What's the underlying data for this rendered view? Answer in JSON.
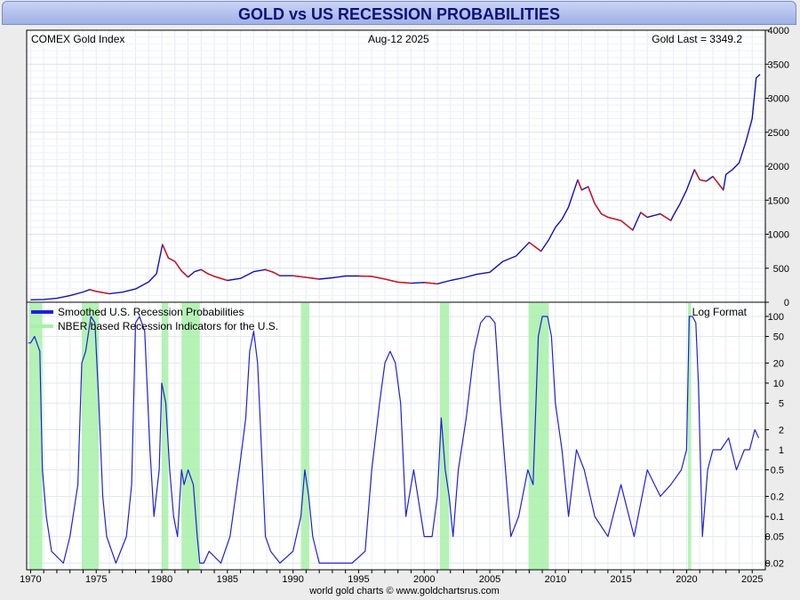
{
  "header": {
    "title": "GOLD vs US RECESSION PROBABILITIES"
  },
  "top_panel": {
    "label_left": "COMEX Gold Index",
    "label_date": "Aug-12  2025",
    "label_last": "Gold Last = 3349.2"
  },
  "bottom_panel": {
    "legend": [
      {
        "label": "Smoothed U.S. Recession Probabilities",
        "color": "#2020e0"
      },
      {
        "label": "NBER based Recession Indicators for the U.S.",
        "color": "#a8f0a8"
      }
    ],
    "format_label": "Log Format"
  },
  "footer": {
    "credit": "world gold charts © www.goldchartsrus.com"
  },
  "chart_data": [
    {
      "type": "line",
      "title": "COMEX Gold Index",
      "ylim": [
        0,
        4000
      ],
      "y_ticks": [
        0,
        500,
        1000,
        1500,
        2000,
        2500,
        3000,
        3500,
        4000
      ],
      "x_ticks": [
        1970,
        1975,
        1980,
        1985,
        1990,
        1995,
        2000,
        2005,
        2010,
        2015,
        2020,
        2025
      ],
      "xlim": [
        1969.7,
        2026.0
      ],
      "colors": {
        "up": "#1010c0",
        "down": "#e01010"
      },
      "series": [
        {
          "x": [
            1970,
            1971,
            1972,
            1973,
            1974,
            1974.5,
            1975,
            1976,
            1977,
            1978,
            1979,
            1979.6,
            1980.05,
            1980.5,
            1981,
            1981.5,
            1982,
            1982.5,
            1983,
            1983.5,
            1984,
            1985,
            1986,
            1987,
            1987.9,
            1988.5,
            1989,
            1990,
            1991,
            1992,
            1993,
            1994,
            1995,
            1996,
            1997,
            1998,
            1999,
            2000,
            2001,
            2002,
            2003,
            2004,
            2005,
            2006,
            2007,
            2008,
            2008.9,
            2009.5,
            2010,
            2010.5,
            2011,
            2011.7,
            2012,
            2012.5,
            2013,
            2013.5,
            2014,
            2015,
            2015.9,
            2016.5,
            2017,
            2018,
            2018.8,
            2019,
            2019.5,
            2020,
            2020.6,
            2021,
            2021.5,
            2022,
            2022.8,
            2023,
            2023.5,
            2024,
            2024.5,
            2025,
            2025.3,
            2025.6
          ],
          "values": [
            35,
            40,
            58,
            97,
            150,
            185,
            160,
            125,
            148,
            195,
            300,
            420,
            850,
            650,
            600,
            460,
            370,
            450,
            480,
            420,
            380,
            320,
            350,
            450,
            480,
            440,
            390,
            390,
            365,
            340,
            360,
            385,
            385,
            380,
            340,
            295,
            280,
            290,
            270,
            320,
            360,
            410,
            440,
            600,
            680,
            880,
            750,
            920,
            1100,
            1220,
            1400,
            1800,
            1650,
            1700,
            1450,
            1300,
            1250,
            1200,
            1060,
            1320,
            1250,
            1300,
            1200,
            1280,
            1450,
            1650,
            1950,
            1800,
            1780,
            1850,
            1650,
            1880,
            1950,
            2050,
            2350,
            2700,
            3300,
            3350
          ]
        }
      ]
    },
    {
      "type": "line",
      "title": "Smoothed U.S. Recession Probabilities",
      "scale": "log",
      "ylim": [
        0.018,
        140
      ],
      "y_ticks": [
        0.02,
        0.05,
        0.1,
        0.2,
        0.5,
        1,
        2,
        5,
        10,
        20,
        50,
        100
      ],
      "x_ticks": [
        1970,
        1975,
        1980,
        1985,
        1990,
        1995,
        2000,
        2005,
        2010,
        2015,
        2020,
        2025
      ],
      "xlim": [
        1969.7,
        2026.0
      ],
      "recessions": [
        [
          1969.9,
          1970.9
        ],
        [
          1973.9,
          1975.2
        ],
        [
          1980.0,
          1980.5
        ],
        [
          1981.5,
          1982.9
        ],
        [
          1990.6,
          1991.25
        ],
        [
          2001.2,
          2001.9
        ],
        [
          2007.95,
          2009.5
        ],
        [
          2020.1,
          2020.35
        ]
      ],
      "series": [
        {
          "name": "Smoothed U.S. Recession Probabilities",
          "x": [
            1969.8,
            1970.0,
            1970.3,
            1970.7,
            1970.9,
            1971.2,
            1971.6,
            1972.5,
            1973.0,
            1973.6,
            1973.9,
            1974.2,
            1974.6,
            1974.9,
            1975.2,
            1975.5,
            1975.8,
            1976.5,
            1977.3,
            1977.7,
            1978.0,
            1978.3,
            1978.7,
            1979.1,
            1979.4,
            1979.8,
            1980.0,
            1980.3,
            1980.6,
            1980.9,
            1981.2,
            1981.5,
            1981.7,
            1982.0,
            1982.4,
            1982.7,
            1982.9,
            1983.2,
            1983.6,
            1984.5,
            1985.2,
            1985.9,
            1986.4,
            1986.7,
            1987.0,
            1987.3,
            1987.6,
            1987.9,
            1988.3,
            1989.0,
            1990.0,
            1990.6,
            1990.9,
            1991.2,
            1991.5,
            1992.0,
            1993.0,
            1994.5,
            1995.5,
            1996.0,
            1996.6,
            1997.0,
            1997.4,
            1997.8,
            1998.2,
            1998.6,
            1999.2,
            2000.0,
            2000.6,
            2001.0,
            2001.3,
            2001.6,
            2001.9,
            2002.2,
            2002.6,
            2003.2,
            2003.8,
            2004.3,
            2004.7,
            2005.0,
            2005.4,
            2005.8,
            2006.2,
            2006.6,
            2007.2,
            2007.9,
            2008.3,
            2008.7,
            2009.0,
            2009.4,
            2009.7,
            2010.0,
            2010.5,
            2011.0,
            2011.6,
            2012.2,
            2013.0,
            2014.0,
            2015.0,
            2016.0,
            2017.0,
            2018.0,
            2018.8,
            2019.6,
            2020.0,
            2020.2,
            2020.45,
            2020.7,
            2020.9,
            2021.2,
            2021.6,
            2022.0,
            2022.6,
            2023.2,
            2023.8,
            2024.4,
            2024.8,
            2025.2,
            2025.5
          ],
          "values": [
            40,
            40,
            50,
            30,
            0.5,
            0.1,
            0.03,
            0.02,
            0.05,
            0.3,
            20,
            30,
            100,
            80,
            5,
            0.2,
            0.05,
            0.02,
            0.05,
            0.3,
            80,
            100,
            60,
            1,
            0.1,
            0.5,
            10,
            5,
            0.5,
            0.1,
            0.05,
            0.5,
            0.3,
            0.5,
            0.3,
            0.05,
            0.02,
            0.02,
            0.03,
            0.02,
            0.05,
            0.5,
            3,
            30,
            60,
            20,
            1,
            0.05,
            0.03,
            0.02,
            0.03,
            0.1,
            0.5,
            0.2,
            0.05,
            0.02,
            0.02,
            0.02,
            0.03,
            0.5,
            5,
            20,
            30,
            20,
            5,
            0.1,
            0.5,
            0.05,
            0.05,
            0.2,
            3,
            0.5,
            0.2,
            0.05,
            0.5,
            3,
            30,
            80,
            100,
            100,
            80,
            5,
            0.5,
            0.05,
            0.1,
            0.5,
            0.3,
            50,
            100,
            100,
            50,
            5,
            1,
            0.1,
            1,
            0.5,
            0.1,
            0.05,
            0.3,
            0.05,
            0.5,
            0.2,
            0.3,
            0.5,
            1,
            100,
            100,
            80,
            10,
            0.05,
            0.5,
            1,
            1,
            1.5,
            0.5,
            1,
            1,
            2,
            1.5
          ]
        }
      ]
    }
  ]
}
